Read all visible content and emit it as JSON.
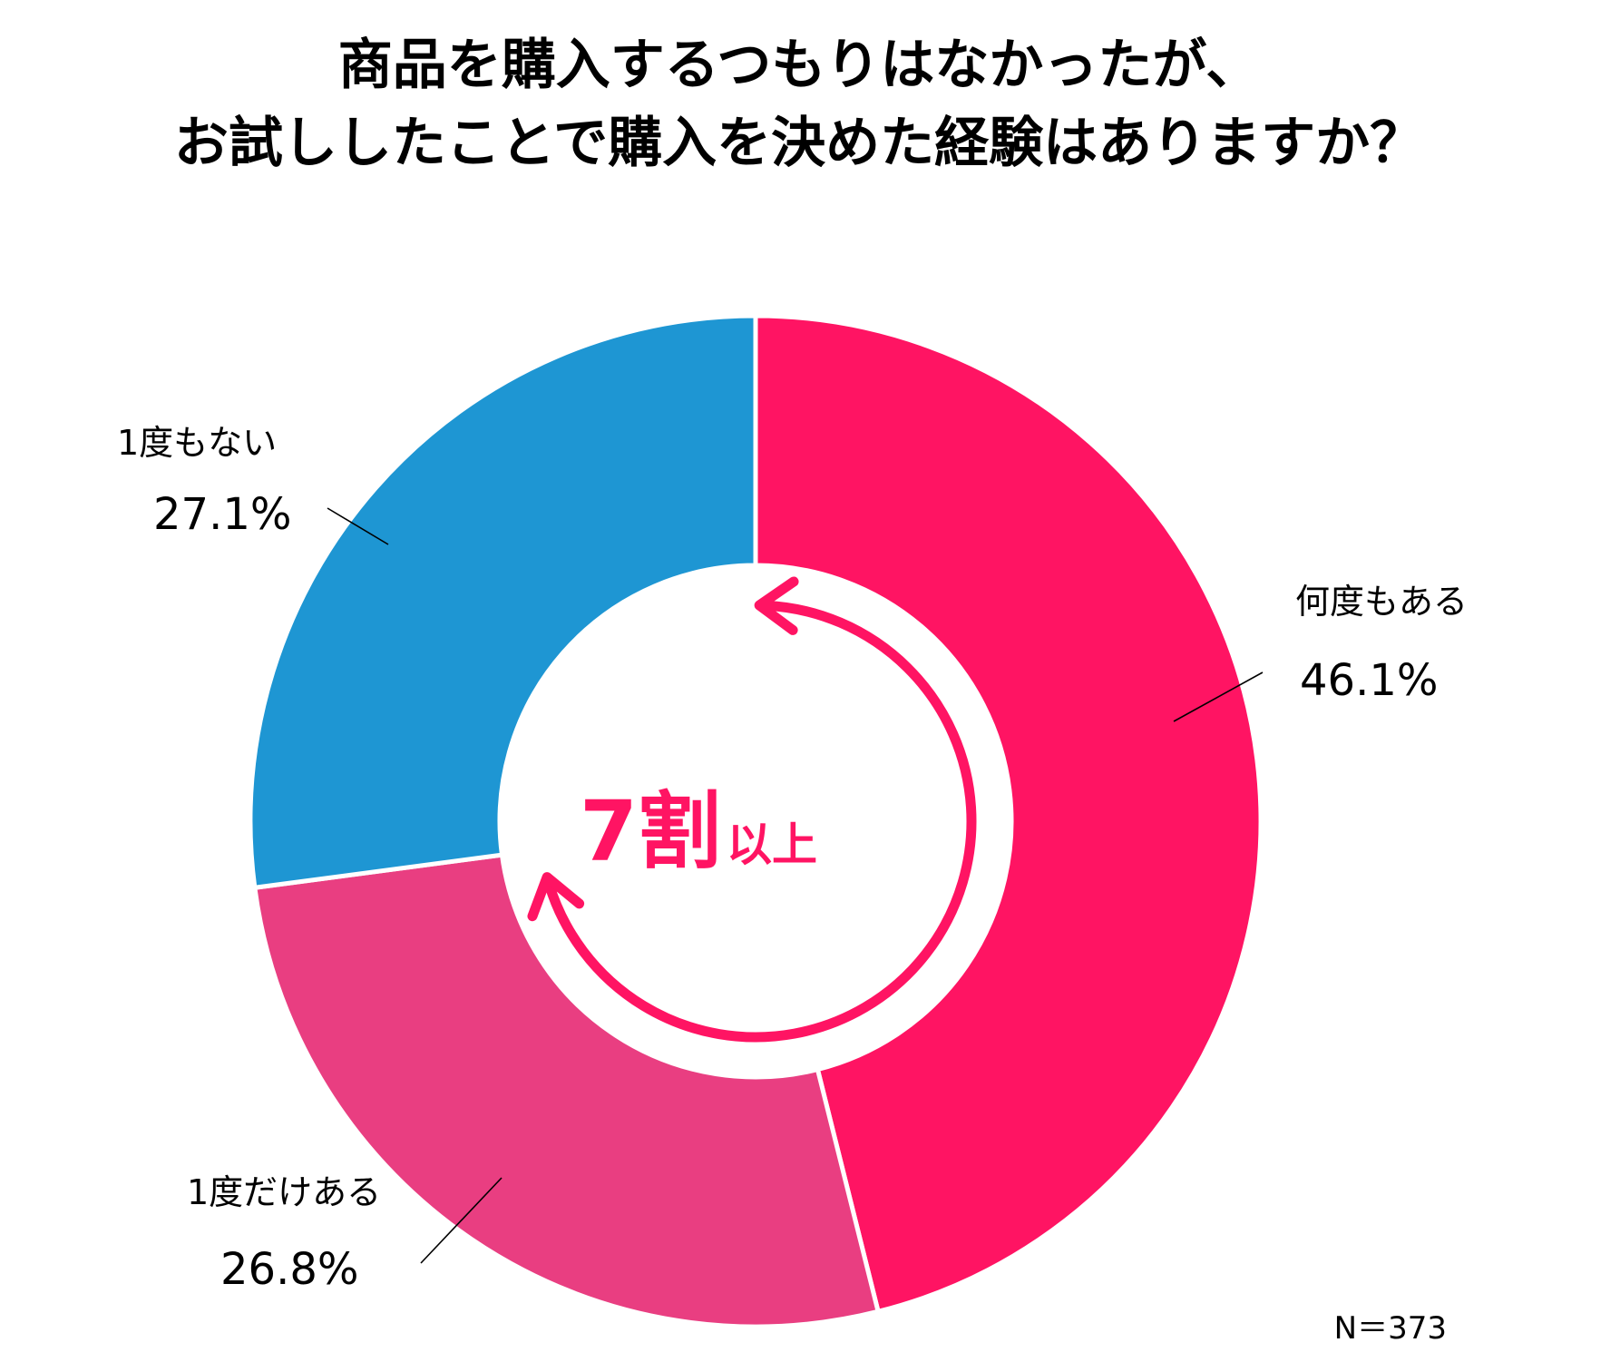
{
  "chart_data": {
    "type": "pie",
    "style": "donut",
    "title_lines": [
      "商品を購入するつもりはなかったが、",
      "お試ししたことで購入を決めた経験はありますか？"
    ],
    "categories": [
      "何度もある",
      "1度だけある",
      "1度もない"
    ],
    "values": [
      46.1,
      26.8,
      27.1
    ],
    "value_labels": [
      "46.1%",
      "26.8%",
      "27.1%"
    ],
    "colors": [
      "#FF1463",
      "#E93E81",
      "#1E96D3"
    ],
    "start_angle": "12 o'clock",
    "direction": "clockwise",
    "center": {
      "big": "7割",
      "small": "以上",
      "color": "#FF1463"
    },
    "note": "N＝373"
  }
}
